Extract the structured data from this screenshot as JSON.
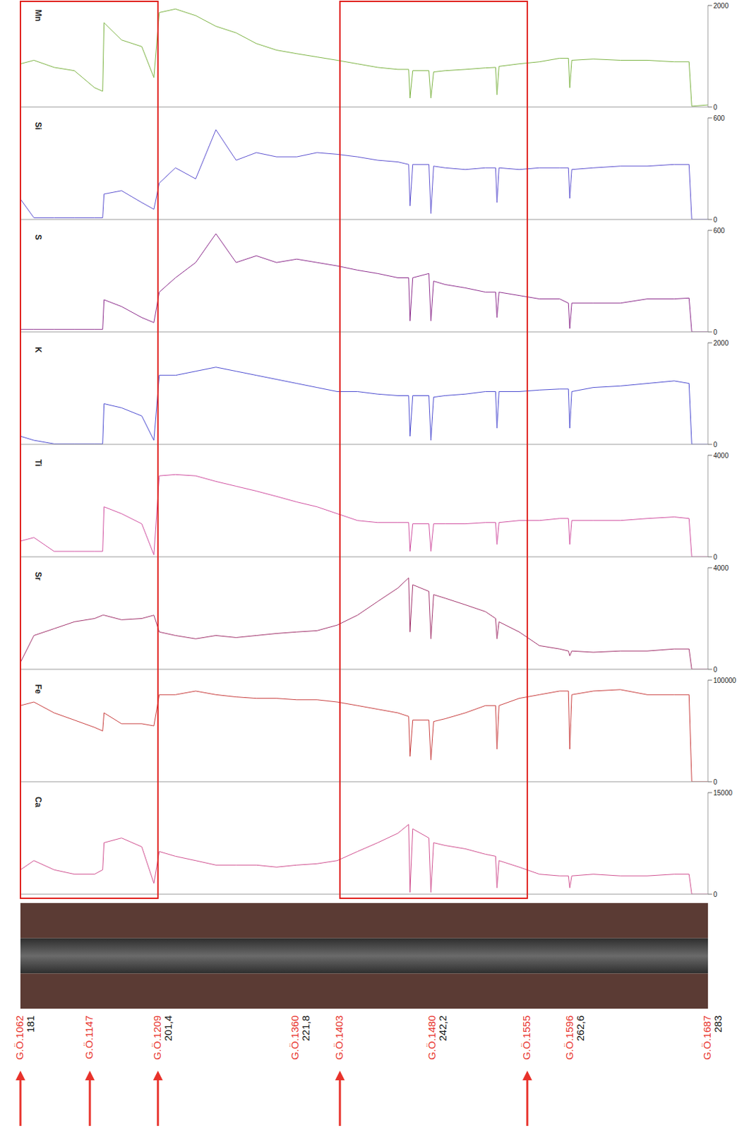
{
  "chart_data": [
    {
      "type": "line",
      "title": "Mn",
      "xlim": [
        181,
        283
      ],
      "xticks": [
        181,
        201.4,
        221.8,
        242.2,
        262.6,
        283
      ],
      "ylim": [
        0,
        2000
      ],
      "yticks": [
        0,
        2000
      ],
      "tick_labels": "y",
      "x": [
        181,
        183,
        186,
        189,
        192,
        193.2,
        193.4,
        196,
        199,
        200.8,
        201.6,
        204,
        207,
        210,
        213,
        216,
        219,
        222,
        225,
        228,
        231,
        234,
        237,
        238.6,
        238.8,
        239.2,
        241.6,
        241.9,
        242.3,
        244,
        247,
        250,
        251.5,
        251.7,
        252,
        255,
        258,
        261,
        262.3,
        262.5,
        262.8,
        266,
        270,
        274,
        278,
        280.2,
        280.6,
        283
      ],
      "series": [
        {
          "name": "Mn",
          "color": "#7cb342",
          "values": [
            850,
            920,
            780,
            715,
            380,
            310,
            1660,
            1320,
            1190,
            580,
            1860,
            1930,
            1800,
            1590,
            1460,
            1250,
            1120,
            1050,
            985,
            920,
            850,
            780,
            740,
            740,
            175,
            715,
            715,
            175,
            690,
            715,
            740,
            770,
            780,
            240,
            800,
            850,
            890,
            960,
            960,
            380,
            920,
            945,
            920,
            920,
            890,
            890,
            15,
            40
          ]
        }
      ]
    },
    {
      "type": "line",
      "title": "Si",
      "xlim": [
        181,
        283
      ],
      "xticks": [
        181,
        201.4,
        221.8,
        242.2,
        262.6,
        283
      ],
      "ylim": [
        0,
        600
      ],
      "yticks": [
        0,
        600
      ],
      "tick_labels": "y",
      "x": [
        181,
        183,
        186,
        189,
        192,
        193.2,
        193.4,
        196,
        199,
        200.8,
        201.6,
        204,
        207,
        210,
        213,
        216,
        219,
        222,
        225,
        228,
        231,
        234,
        237,
        238.6,
        238.8,
        239.2,
        241.6,
        241.9,
        242.3,
        244,
        247,
        250,
        251.5,
        251.7,
        252,
        255,
        258,
        261,
        262.3,
        262.5,
        262.8,
        266,
        270,
        274,
        278,
        280.2,
        280.6,
        283
      ],
      "series": [
        {
          "name": "Si",
          "color": "#5a4fcf",
          "values": [
            120,
            10,
            10,
            10,
            10,
            10,
            150,
            170,
            100,
            60,
            215,
            305,
            240,
            530,
            350,
            395,
            370,
            370,
            395,
            385,
            370,
            350,
            340,
            325,
            80,
            325,
            325,
            35,
            315,
            305,
            295,
            305,
            305,
            100,
            305,
            295,
            305,
            305,
            305,
            125,
            295,
            305,
            315,
            315,
            325,
            325,
            0,
            0
          ]
        }
      ]
    },
    {
      "type": "line",
      "title": "S",
      "xlim": [
        181,
        283
      ],
      "xticks": [
        181,
        201.4,
        221.8,
        242.2,
        262.6,
        283
      ],
      "ylim": [
        0,
        600
      ],
      "yticks": [
        0,
        600
      ],
      "tick_labels": "y",
      "x": [
        181,
        183,
        186,
        189,
        192,
        193.2,
        193.4,
        196,
        199,
        200.8,
        201.6,
        204,
        207,
        210,
        213,
        216,
        219,
        222,
        225,
        228,
        231,
        234,
        237,
        238.6,
        238.8,
        239.2,
        241.6,
        241.9,
        242.3,
        244,
        247,
        250,
        251.5,
        251.7,
        252,
        255,
        258,
        261,
        262.3,
        262.5,
        262.8,
        266,
        270,
        274,
        278,
        280.2,
        280.6,
        283
      ],
      "series": [
        {
          "name": "S",
          "color": "#8b2a8b",
          "values": [
            15,
            15,
            15,
            15,
            15,
            15,
            190,
            150,
            85,
            55,
            235,
            320,
            410,
            580,
            410,
            450,
            410,
            430,
            410,
            390,
            365,
            345,
            320,
            320,
            65,
            320,
            345,
            65,
            300,
            280,
            260,
            235,
            235,
            85,
            235,
            215,
            195,
            195,
            170,
            20,
            170,
            170,
            170,
            195,
            195,
            200,
            0,
            0
          ]
        }
      ]
    },
    {
      "type": "line",
      "title": "K",
      "xlim": [
        181,
        283
      ],
      "xticks": [
        181,
        201.4,
        221.8,
        242.2,
        262.6,
        283
      ],
      "ylim": [
        0,
        2000
      ],
      "yticks": [
        0,
        2000
      ],
      "tick_labels": "y",
      "x": [
        181,
        183,
        186,
        189,
        192,
        193.2,
        193.4,
        196,
        199,
        200.8,
        201.6,
        204,
        207,
        210,
        213,
        216,
        219,
        222,
        225,
        228,
        231,
        234,
        237,
        238.6,
        238.8,
        239.2,
        241.6,
        241.9,
        242.3,
        244,
        247,
        250,
        251.5,
        251.7,
        252,
        255,
        258,
        261,
        262.3,
        262.5,
        262.8,
        266,
        270,
        274,
        278,
        280.2,
        280.6,
        283
      ],
      "series": [
        {
          "name": "K",
          "color": "#4a4ad0",
          "values": [
            160,
            80,
            10,
            10,
            10,
            10,
            800,
            720,
            560,
            80,
            1360,
            1360,
            1440,
            1520,
            1440,
            1360,
            1280,
            1200,
            1120,
            1040,
            1040,
            990,
            960,
            960,
            160,
            960,
            960,
            80,
            930,
            960,
            990,
            1040,
            1040,
            320,
            1040,
            1040,
            1070,
            1090,
            1090,
            320,
            1040,
            1120,
            1150,
            1200,
            1250,
            1200,
            0,
            0
          ]
        }
      ]
    },
    {
      "type": "line",
      "title": "Ti",
      "xlim": [
        181,
        283
      ],
      "xticks": [
        181,
        201.4,
        221.8,
        242.2,
        262.6,
        283
      ],
      "ylim": [
        0,
        4000
      ],
      "yticks": [
        0,
        4000
      ],
      "tick_labels": "y",
      "x": [
        181,
        183,
        186,
        189,
        192,
        193.2,
        193.4,
        196,
        199,
        200.8,
        201.6,
        204,
        207,
        210,
        213,
        216,
        219,
        222,
        225,
        228,
        231,
        234,
        237,
        238.6,
        238.8,
        239.2,
        241.6,
        241.9,
        242.3,
        244,
        247,
        250,
        251.5,
        251.7,
        252,
        255,
        258,
        261,
        262.3,
        262.5,
        262.8,
        266,
        270,
        274,
        278,
        280.2,
        280.6,
        283
      ],
      "series": [
        {
          "name": "Ti",
          "color": "#d04fa0",
          "values": [
            620,
            760,
            215,
            215,
            215,
            215,
            1970,
            1700,
            1300,
            80,
            3190,
            3240,
            3190,
            2970,
            2780,
            2590,
            2380,
            2160,
            1970,
            1700,
            1430,
            1350,
            1350,
            1350,
            215,
            1300,
            1300,
            215,
            1300,
            1300,
            1300,
            1350,
            1350,
            490,
            1350,
            1430,
            1430,
            1510,
            1510,
            490,
            1430,
            1430,
            1430,
            1510,
            1570,
            1510,
            0,
            0
          ]
        }
      ]
    },
    {
      "type": "line",
      "title": "Sr",
      "xlim": [
        181,
        283
      ],
      "xticks": [
        181,
        201.4,
        221.8,
        242.2,
        262.6,
        283
      ],
      "ylim": [
        0,
        4000
      ],
      "yticks": [
        0,
        4000
      ],
      "tick_labels": "y",
      "x": [
        181,
        183,
        186,
        189,
        192,
        193.2,
        193.4,
        196,
        199,
        200.8,
        201.6,
        204,
        207,
        210,
        213,
        216,
        219,
        222,
        225,
        228,
        231,
        234,
        237,
        238.6,
        238.8,
        239.2,
        241.6,
        241.9,
        242.3,
        244,
        247,
        250,
        251.5,
        251.7,
        252,
        255,
        258,
        261,
        262.3,
        262.5,
        262.8,
        266,
        270,
        274,
        278,
        280.2,
        280.6,
        283
      ],
      "series": [
        {
          "name": "Sr",
          "color": "#a0306a",
          "values": [
            270,
            1330,
            1600,
            1870,
            2000,
            2130,
            2130,
            1950,
            2000,
            2130,
            1470,
            1330,
            1200,
            1330,
            1250,
            1330,
            1410,
            1470,
            1520,
            1740,
            2130,
            2670,
            3200,
            3600,
            1470,
            3330,
            3070,
            1200,
            2940,
            2800,
            2540,
            2270,
            2000,
            1200,
            1870,
            1470,
            930,
            800,
            720,
            530,
            720,
            670,
            720,
            720,
            800,
            800,
            0,
            0
          ]
        }
      ]
    },
    {
      "type": "line",
      "title": "Fe",
      "xlim": [
        181,
        283
      ],
      "xticks": [
        181,
        201.4,
        221.8,
        242.2,
        262.6,
        283
      ],
      "ylim": [
        0,
        100000
      ],
      "yticks": [
        0,
        100000
      ],
      "tick_labels": "y",
      "x": [
        181,
        183,
        186,
        189,
        192,
        193.2,
        193.4,
        196,
        199,
        200.8,
        201.6,
        204,
        207,
        210,
        213,
        216,
        219,
        222,
        225,
        228,
        231,
        234,
        237,
        238.6,
        238.8,
        239.2,
        241.6,
        241.9,
        242.3,
        244,
        247,
        250,
        251.5,
        251.7,
        252,
        255,
        258,
        261,
        262.3,
        262.5,
        262.8,
        266,
        270,
        274,
        278,
        280.2,
        280.6,
        283
      ],
      "series": [
        {
          "name": "Fe",
          "color": "#c83c3c",
          "values": [
            75000,
            78500,
            67800,
            60700,
            53500,
            50000,
            67800,
            57100,
            57100,
            55000,
            85700,
            85700,
            89300,
            85700,
            83500,
            82100,
            82100,
            80700,
            80700,
            78500,
            75000,
            71400,
            67800,
            64300,
            25000,
            60700,
            60700,
            21400,
            59300,
            62000,
            67800,
            75000,
            75000,
            32100,
            75000,
            82100,
            85700,
            89300,
            89300,
            32100,
            85700,
            89300,
            90700,
            85700,
            85700,
            85700,
            0,
            0
          ]
        }
      ]
    },
    {
      "type": "line",
      "title": "Ca",
      "xlim": [
        181,
        283
      ],
      "xticks": [
        181,
        201.4,
        221.8,
        242.2,
        262.6,
        283
      ],
      "ylim": [
        0,
        15000
      ],
      "yticks": [
        0,
        15000
      ],
      "tick_labels": "y",
      "x": [
        181,
        183,
        186,
        189,
        192,
        193.2,
        193.4,
        196,
        199,
        200.8,
        201.6,
        204,
        207,
        210,
        213,
        216,
        219,
        222,
        225,
        228,
        231,
        234,
        237,
        238.6,
        238.8,
        239.2,
        241.6,
        241.9,
        242.3,
        244,
        247,
        250,
        251.5,
        251.7,
        252,
        255,
        258,
        261,
        262.3,
        262.5,
        262.8,
        266,
        270,
        274,
        278,
        280.2,
        280.6,
        283
      ],
      "series": [
        {
          "name": "Ca",
          "color": "#d04f8f",
          "values": [
            3600,
            4960,
            3600,
            2950,
            2950,
            3600,
            7600,
            8300,
            7000,
            1600,
            6300,
            5600,
            4960,
            4300,
            4300,
            4300,
            4000,
            4300,
            4500,
            4960,
            6300,
            7600,
            9000,
            10300,
            270,
            9650,
            8300,
            270,
            7600,
            7200,
            6700,
            5900,
            5600,
            940,
            4960,
            4000,
            2950,
            2700,
            2700,
            940,
            2700,
            2950,
            2700,
            2700,
            2950,
            2950,
            0,
            0
          ]
        }
      ]
    }
  ],
  "depth_axis": {
    "xlim": [
      181,
      283
    ],
    "xticks": [
      181,
      {
        "value": 201.4,
        "label": "201,4"
      },
      {
        "value": 221.8,
        "label": "221,8"
      },
      {
        "value": 242.2,
        "label": "242,2"
      },
      {
        "value": 262.6,
        "label": "262,6"
      },
      283
    ]
  },
  "samples": {
    "color": "#e8322b",
    "items": [
      {
        "depth": 181,
        "label": "G.Ö.1062",
        "arrow": true
      },
      {
        "depth": 191.3,
        "label": "G.Ö.1147",
        "arrow": true
      },
      {
        "depth": 201.4,
        "label": "G.Ö.1209",
        "arrow": true
      },
      {
        "depth": 221.8,
        "label": "G.Ö.1360",
        "arrow": false
      },
      {
        "depth": 228.4,
        "label": "G.Ö.1403",
        "arrow": true
      },
      {
        "depth": 242.2,
        "label": "G.Ö.1480",
        "arrow": false
      },
      {
        "depth": 256.2,
        "label": "G.Ö.1555",
        "arrow": true
      },
      {
        "depth": 262.6,
        "label": "G.Ö.1596",
        "arrow": false
      },
      {
        "depth": 283,
        "label": "G.Ö.1687",
        "arrow": false
      }
    ]
  },
  "highlight_ranges": [
    {
      "from": 181,
      "to": 201.4,
      "color": "#e0201c"
    },
    {
      "from": 228.4,
      "to": 256.2,
      "color": "#e0201c"
    }
  ]
}
